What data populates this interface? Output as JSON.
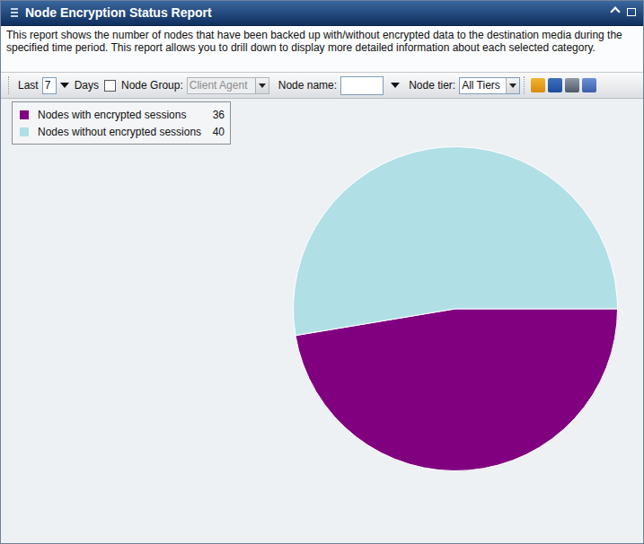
{
  "header": {
    "title": "Node Encryption Status Report",
    "description": "This report shows the number of nodes that have been backed up with/without encrypted data to the destination media during the specified time period. This report allows you to drill down to display more detailed information about each selected category."
  },
  "toolbar": {
    "period_prefix": "Last",
    "period_value": 7,
    "period_unit": "Days",
    "node_group_label": "Node Group:",
    "node_group_value": "Client Agent",
    "node_name_label": "Node name:",
    "node_tier_label": "Node tier:",
    "node_tier_value": "All Tiers"
  },
  "chart_data": {
    "type": "pie",
    "categories": [
      "Nodes with encrypted sessions",
      "Nodes without encrypted sessions"
    ],
    "values": [
      36,
      40
    ],
    "colors": [
      "#800080",
      "#b0dfe5"
    ],
    "legend": "top-left"
  }
}
